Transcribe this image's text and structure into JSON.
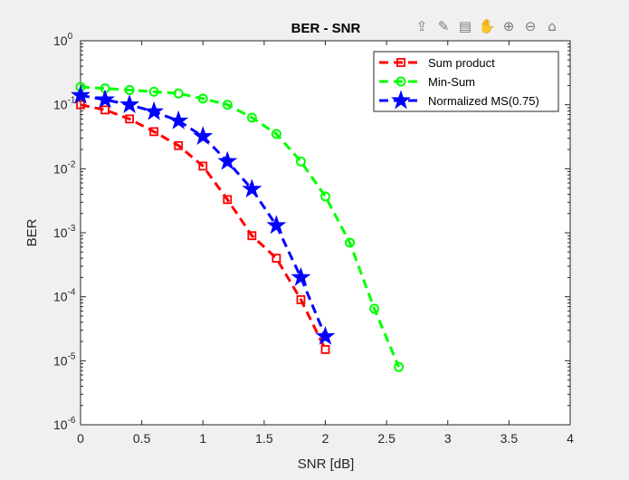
{
  "toolbar": {
    "icons": [
      {
        "name": "export-icon",
        "glyph": "⇪"
      },
      {
        "name": "brush-icon",
        "glyph": "✎"
      },
      {
        "name": "data-tips-icon",
        "glyph": "▤"
      },
      {
        "name": "pan-hand-icon",
        "glyph": "✋"
      },
      {
        "name": "zoom-in-icon",
        "glyph": "⊕"
      },
      {
        "name": "zoom-out-icon",
        "glyph": "⊖"
      },
      {
        "name": "home-icon",
        "glyph": "⌂"
      }
    ]
  },
  "chart_data": {
    "type": "line",
    "title": "BER - SNR",
    "xlabel": "SNR [dB]",
    "ylabel": "BER",
    "yscale": "log",
    "xlim": [
      0,
      4
    ],
    "ylim": [
      1e-06,
      1
    ],
    "xticks": [
      "0",
      "0.5",
      "1",
      "1.5",
      "2",
      "2.5",
      "3",
      "3.5",
      "4"
    ],
    "yticks": [
      {
        "base": "10",
        "exp": "-6"
      },
      {
        "base": "10",
        "exp": "-5"
      },
      {
        "base": "10",
        "exp": "-4"
      },
      {
        "base": "10",
        "exp": "-3"
      },
      {
        "base": "10",
        "exp": "-2"
      },
      {
        "base": "10",
        "exp": "-1"
      },
      {
        "base": "10",
        "exp": "0"
      }
    ],
    "grid": false,
    "legend_position": "top-right",
    "series": [
      {
        "name": "Sum product",
        "color": "#ff0000",
        "marker": "square",
        "x": [
          0,
          0.2,
          0.4,
          0.6,
          0.8,
          1.0,
          1.2,
          1.4,
          1.6,
          1.8,
          2.0
        ],
        "y": [
          0.1,
          0.083,
          0.06,
          0.038,
          0.023,
          0.011,
          0.0033,
          0.0009,
          0.0004,
          9e-05,
          1.5e-05
        ]
      },
      {
        "name": "Min-Sum",
        "color": "#00ff00",
        "marker": "circle",
        "x": [
          0,
          0.2,
          0.4,
          0.6,
          0.8,
          1.0,
          1.2,
          1.4,
          1.6,
          1.8,
          2.0,
          2.2,
          2.4,
          2.6
        ],
        "y": [
          0.19,
          0.18,
          0.17,
          0.16,
          0.15,
          0.125,
          0.1,
          0.063,
          0.035,
          0.013,
          0.0037,
          0.0007,
          6.5e-05,
          8e-06
        ]
      },
      {
        "name": "Normalized MS(0.75)",
        "color": "#0000ff",
        "marker": "star",
        "x": [
          0,
          0.2,
          0.4,
          0.6,
          0.8,
          1.0,
          1.2,
          1.4,
          1.6,
          1.8,
          2.0
        ],
        "y": [
          0.14,
          0.12,
          0.1,
          0.078,
          0.056,
          0.032,
          0.013,
          0.0048,
          0.0013,
          0.0002,
          2.4e-05
        ]
      }
    ]
  }
}
